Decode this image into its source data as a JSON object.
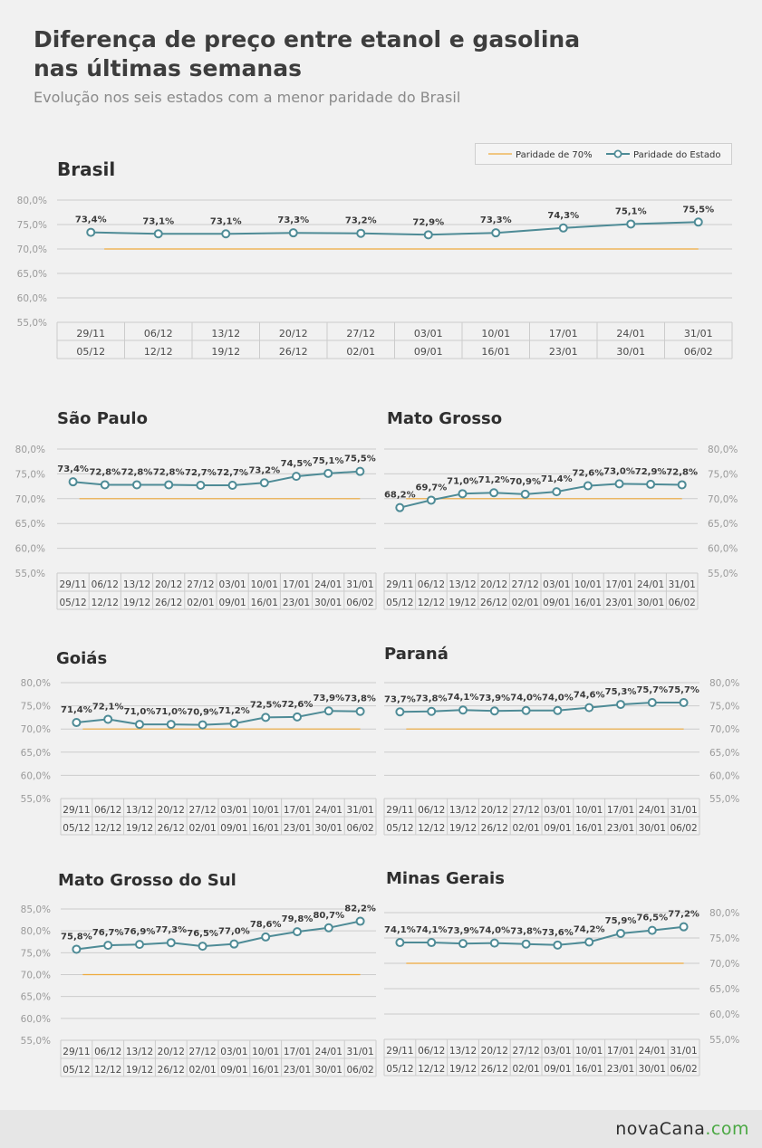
{
  "header": {
    "title_line1": "Diferença de preço entre etanol e gasolina",
    "title_line2": "nas últimas semanas",
    "subtitle": "Evolução nos seis estados com a menor paridade do Brasil"
  },
  "legend": {
    "parity_label": "Paridade de 70%",
    "state_label": "Paridade do Estado"
  },
  "colors": {
    "series": "#4e8b96",
    "parity": "#eeaa3c",
    "grid": "#cccccc",
    "tick_text": "#9a9a9a",
    "label_text": "#3a3a3a"
  },
  "footer": {
    "logo_part1": "novaCana",
    "logo_part2": ".com"
  },
  "chart_data": [
    {
      "type": "line",
      "title": "Brasil",
      "x_top": [
        "29/11",
        "06/12",
        "13/12",
        "20/12",
        "27/12",
        "03/01",
        "10/01",
        "17/01",
        "24/01",
        "31/01"
      ],
      "x_bottom": [
        "05/12",
        "12/12",
        "19/12",
        "26/12",
        "02/01",
        "09/01",
        "16/01",
        "23/01",
        "30/01",
        "06/02"
      ],
      "series": [
        {
          "name": "Paridade do Estado",
          "values": [
            73.4,
            73.1,
            73.1,
            73.3,
            73.2,
            72.9,
            73.3,
            74.3,
            75.1,
            75.5
          ],
          "labels": [
            "73,4%",
            "73,1%",
            "73,1%",
            "73,3%",
            "73,2%",
            "72,9%",
            "73,3%",
            "74,3%",
            "75,1%",
            "75,5%"
          ]
        },
        {
          "name": "Paridade de 70%",
          "values": [
            70,
            70,
            70,
            70,
            70,
            70,
            70,
            70,
            70,
            70
          ]
        }
      ],
      "ylim": [
        55,
        80
      ],
      "y_ticks": [
        "55,0%",
        "60,0%",
        "65,0%",
        "70,0%",
        "75,0%",
        "80,0%"
      ],
      "y_axis_side": "left",
      "grid": true
    },
    {
      "type": "line",
      "title": "São Paulo",
      "x_top": [
        "29/11",
        "06/12",
        "13/12",
        "20/12",
        "27/12",
        "03/01",
        "10/01",
        "17/01",
        "24/01",
        "31/01"
      ],
      "x_bottom": [
        "05/12",
        "12/12",
        "19/12",
        "26/12",
        "02/01",
        "09/01",
        "16/01",
        "23/01",
        "30/01",
        "06/02"
      ],
      "series": [
        {
          "name": "Paridade do Estado",
          "values": [
            73.4,
            72.8,
            72.8,
            72.8,
            72.7,
            72.7,
            73.2,
            74.5,
            75.1,
            75.5
          ],
          "labels": [
            "73,4%",
            "72,8%",
            "72,8%",
            "72,8%",
            "72,7%",
            "72,7%",
            "73,2%",
            "74,5%",
            "75,1%",
            "75,5%"
          ]
        },
        {
          "name": "Paridade de 70%",
          "values": [
            70,
            70,
            70,
            70,
            70,
            70,
            70,
            70,
            70,
            70
          ]
        }
      ],
      "ylim": [
        55,
        80
      ],
      "y_ticks": [
        "55,0%",
        "60,0%",
        "65,0%",
        "70,0%",
        "75,0%",
        "80,0%"
      ],
      "y_axis_side": "left",
      "grid": true
    },
    {
      "type": "line",
      "title": "Mato Grosso",
      "x_top": [
        "29/11",
        "06/12",
        "13/12",
        "20/12",
        "27/12",
        "03/01",
        "10/01",
        "17/01",
        "24/01",
        "31/01"
      ],
      "x_bottom": [
        "05/12",
        "12/12",
        "19/12",
        "26/12",
        "02/01",
        "09/01",
        "16/01",
        "23/01",
        "30/01",
        "06/02"
      ],
      "series": [
        {
          "name": "Paridade do Estado",
          "values": [
            68.2,
            69.7,
            71.0,
            71.2,
            70.9,
            71.4,
            72.6,
            73.0,
            72.9,
            72.8
          ],
          "labels": [
            "68,2%",
            "69,7%",
            "71,0%",
            "71,2%",
            "70,9%",
            "71,4%",
            "72,6%",
            "73,0%",
            "72,9%",
            "72,8%"
          ]
        },
        {
          "name": "Paridade de 70%",
          "values": [
            70,
            70,
            70,
            70,
            70,
            70,
            70,
            70,
            70,
            70
          ]
        }
      ],
      "ylim": [
        55,
        80
      ],
      "y_ticks": [
        "55,0%",
        "60,0%",
        "65,0%",
        "70,0%",
        "75,0%",
        "80,0%"
      ],
      "y_axis_side": "right",
      "grid": true
    },
    {
      "type": "line",
      "title": "Goiás",
      "x_top": [
        "29/11",
        "06/12",
        "13/12",
        "20/12",
        "27/12",
        "03/01",
        "10/01",
        "17/01",
        "24/01",
        "31/01"
      ],
      "x_bottom": [
        "05/12",
        "12/12",
        "19/12",
        "26/12",
        "02/01",
        "09/01",
        "16/01",
        "23/01",
        "30/01",
        "06/02"
      ],
      "series": [
        {
          "name": "Paridade do Estado",
          "values": [
            71.4,
            72.1,
            71.0,
            71.0,
            70.9,
            71.2,
            72.5,
            72.6,
            73.9,
            73.8
          ],
          "labels": [
            "71,4%",
            "72,1%",
            "71,0%",
            "71,0%",
            "70,9%",
            "71,2%",
            "72,5%",
            "72,6%",
            "73,9%",
            "73,8%"
          ]
        },
        {
          "name": "Paridade de 70%",
          "values": [
            70,
            70,
            70,
            70,
            70,
            70,
            70,
            70,
            70,
            70
          ]
        }
      ],
      "ylim": [
        55,
        80
      ],
      "y_ticks": [
        "55,0%",
        "60,0%",
        "65,0%",
        "70,0%",
        "75,0%",
        "80,0%"
      ],
      "y_axis_side": "left",
      "grid": true
    },
    {
      "type": "line",
      "title": "Paraná",
      "x_top": [
        "29/11",
        "06/12",
        "13/12",
        "20/12",
        "27/12",
        "03/01",
        "10/01",
        "17/01",
        "24/01",
        "31/01"
      ],
      "x_bottom": [
        "05/12",
        "12/12",
        "19/12",
        "26/12",
        "02/01",
        "09/01",
        "16/01",
        "23/01",
        "30/01",
        "06/02"
      ],
      "series": [
        {
          "name": "Paridade do Estado",
          "values": [
            73.7,
            73.8,
            74.1,
            73.9,
            74.0,
            74.0,
            74.6,
            75.3,
            75.7,
            75.7
          ],
          "labels": [
            "73,7%",
            "73,8%",
            "74,1%",
            "73,9%",
            "74,0%",
            "74,0%",
            "74,6%",
            "75,3%",
            "75,7%",
            "75,7%"
          ]
        },
        {
          "name": "Paridade de 70%",
          "values": [
            70,
            70,
            70,
            70,
            70,
            70,
            70,
            70,
            70,
            70
          ]
        }
      ],
      "ylim": [
        55,
        80
      ],
      "y_ticks": [
        "55,0%",
        "60,0%",
        "65,0%",
        "70,0%",
        "75,0%",
        "80,0%"
      ],
      "y_axis_side": "right",
      "grid": true
    },
    {
      "type": "line",
      "title": "Mato Grosso do Sul",
      "x_top": [
        "29/11",
        "06/12",
        "13/12",
        "20/12",
        "27/12",
        "03/01",
        "10/01",
        "17/01",
        "24/01",
        "31/01"
      ],
      "x_bottom": [
        "05/12",
        "12/12",
        "19/12",
        "26/12",
        "02/01",
        "09/01",
        "16/01",
        "23/01",
        "30/01",
        "06/02"
      ],
      "series": [
        {
          "name": "Paridade do Estado",
          "values": [
            75.8,
            76.7,
            76.9,
            77.3,
            76.5,
            77.0,
            78.6,
            79.8,
            80.7,
            82.2
          ],
          "labels": [
            "75,8%",
            "76,7%",
            "76,9%",
            "77,3%",
            "76,5%",
            "77,0%",
            "78,6%",
            "79,8%",
            "80,7%",
            "82,2%"
          ]
        },
        {
          "name": "Paridade de 70%",
          "values": [
            70,
            70,
            70,
            70,
            70,
            70,
            70,
            70,
            70,
            70
          ]
        }
      ],
      "ylim": [
        55,
        85
      ],
      "y_ticks": [
        "55,0%",
        "60,0%",
        "65,0%",
        "70,0%",
        "75,0%",
        "80,0%",
        "85,0%"
      ],
      "y_axis_side": "left",
      "grid": true
    },
    {
      "type": "line",
      "title": "Minas Gerais",
      "x_top": [
        "29/11",
        "06/12",
        "13/12",
        "20/12",
        "27/12",
        "03/01",
        "10/01",
        "17/01",
        "24/01",
        "31/01"
      ],
      "x_bottom": [
        "05/12",
        "12/12",
        "19/12",
        "26/12",
        "02/01",
        "09/01",
        "16/01",
        "23/01",
        "30/01",
        "06/02"
      ],
      "series": [
        {
          "name": "Paridade do Estado",
          "values": [
            74.1,
            74.1,
            73.9,
            74.0,
            73.8,
            73.6,
            74.2,
            75.9,
            76.5,
            77.2
          ],
          "labels": [
            "74,1%",
            "74,1%",
            "73,9%",
            "74,0%",
            "73,8%",
            "73,6%",
            "74,2%",
            "75,9%",
            "76,5%",
            "77,2%"
          ]
        },
        {
          "name": "Paridade de 70%",
          "values": [
            70,
            70,
            70,
            70,
            70,
            70,
            70,
            70,
            70,
            70
          ]
        }
      ],
      "ylim": [
        55,
        80
      ],
      "y_ticks": [
        "55,0%",
        "60,0%",
        "65,0%",
        "70,0%",
        "75,0%",
        "80,0%"
      ],
      "y_axis_side": "right",
      "grid": true
    }
  ]
}
